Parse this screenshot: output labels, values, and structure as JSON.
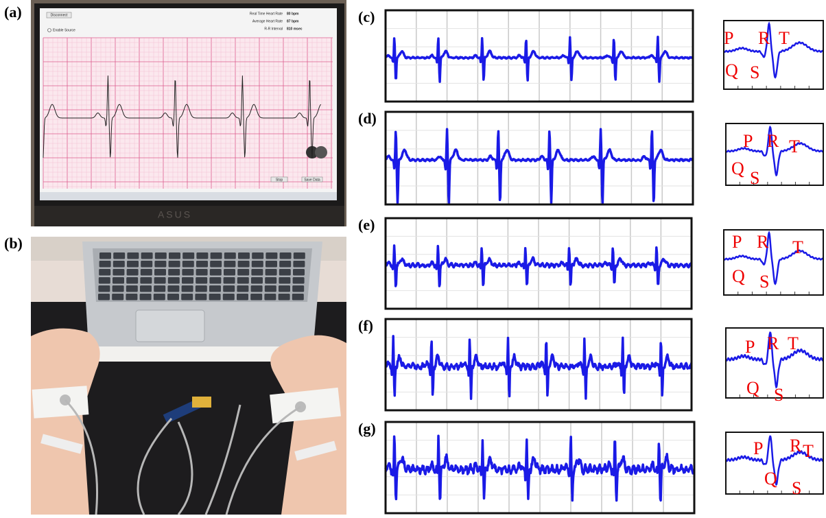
{
  "photo_labels": [
    "(a)",
    "(b)"
  ],
  "screen": {
    "buttons": [
      "Disconnect",
      "Stop",
      "Save Data"
    ],
    "checkbox": "Enable Source",
    "readouts": [
      {
        "label": "Real Time Heart Rate",
        "value": "80 bpm"
      },
      {
        "label": "Average Heart Rate",
        "value": "87 bpm"
      },
      {
        "label": "R-R Interval",
        "value": "810 msec"
      }
    ],
    "brand": "ASUS"
  },
  "traces": [
    {
      "label": "(c)",
      "wave_labels": [
        "P",
        "R",
        "T",
        "Q",
        "S"
      ]
    },
    {
      "label": "(d)",
      "wave_labels": [
        "P",
        "R",
        "T",
        "Q",
        "S"
      ]
    },
    {
      "label": "(e)",
      "wave_labels": [
        "P",
        "R",
        "T",
        "Q",
        "S"
      ]
    },
    {
      "label": "(f)",
      "wave_labels": [
        "P",
        "R",
        "T",
        "Q",
        "S"
      ]
    },
    {
      "label": "(g)",
      "wave_labels": [
        "P",
        "R",
        "T",
        "Q",
        "S"
      ]
    }
  ]
}
